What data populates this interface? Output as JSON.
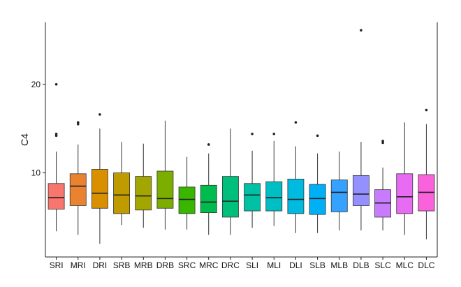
{
  "chart_data": {
    "type": "box",
    "ylabel": "C4",
    "xlabel": "",
    "ylim": [
      0.5,
      27
    ],
    "yticks": [
      10,
      20
    ],
    "categories": [
      "SRI",
      "MRI",
      "DRI",
      "SRB",
      "MRB",
      "DRB",
      "SRC",
      "MRC",
      "DRC",
      "SLI",
      "MLI",
      "DLI",
      "SLB",
      "MLB",
      "DLB",
      "SLC",
      "MLC",
      "DLC"
    ],
    "colors": [
      "#F8766D",
      "#EA8331",
      "#D89000",
      "#C09B00",
      "#A3A500",
      "#7CAE00",
      "#39B600",
      "#00BB4E",
      "#00BF7D",
      "#00C1A3",
      "#00BFC4",
      "#00BAE0",
      "#00B0F6",
      "#35A2FF",
      "#9590FF",
      "#C77CFF",
      "#E76BF3",
      "#FA62DB"
    ],
    "series": [
      {
        "category": "SRI",
        "min": 3.4,
        "q1": 5.9,
        "median": 7.2,
        "q3": 8.8,
        "max": 12.4,
        "outliers": [
          14.2,
          14.4,
          20.0
        ]
      },
      {
        "category": "MRI",
        "min": 3.0,
        "q1": 6.3,
        "median": 8.5,
        "q3": 9.9,
        "max": 13.2,
        "outliers": [
          15.5,
          15.7
        ]
      },
      {
        "category": "DRI",
        "min": 2.0,
        "q1": 6.0,
        "median": 7.7,
        "q3": 10.4,
        "max": 15.0,
        "outliers": [
          16.6
        ]
      },
      {
        "category": "SRB",
        "min": 4.1,
        "q1": 5.4,
        "median": 7.5,
        "q3": 10.0,
        "max": 13.5,
        "outliers": []
      },
      {
        "category": "MRB",
        "min": 3.8,
        "q1": 5.8,
        "median": 7.4,
        "q3": 9.6,
        "max": 13.3,
        "outliers": []
      },
      {
        "category": "DRB",
        "min": 3.6,
        "q1": 6.0,
        "median": 7.1,
        "q3": 10.2,
        "max": 15.9,
        "outliers": []
      },
      {
        "category": "SRC",
        "min": 3.6,
        "q1": 5.4,
        "median": 7.0,
        "q3": 8.4,
        "max": 11.8,
        "outliers": []
      },
      {
        "category": "MRC",
        "min": 3.0,
        "q1": 5.5,
        "median": 6.7,
        "q3": 8.6,
        "max": 12.2,
        "outliers": [
          13.2
        ]
      },
      {
        "category": "DRC",
        "min": 3.0,
        "q1": 5.0,
        "median": 6.8,
        "q3": 9.6,
        "max": 15.0,
        "outliers": []
      },
      {
        "category": "SLI",
        "min": 3.8,
        "q1": 5.7,
        "median": 7.5,
        "q3": 8.8,
        "max": 12.5,
        "outliers": [
          14.4
        ]
      },
      {
        "category": "MLI",
        "min": 4.0,
        "q1": 5.7,
        "median": 7.2,
        "q3": 9.0,
        "max": 13.6,
        "outliers": [
          14.4
        ]
      },
      {
        "category": "DLI",
        "min": 3.2,
        "q1": 5.4,
        "median": 7.0,
        "q3": 9.3,
        "max": 13.0,
        "outliers": [
          15.7
        ]
      },
      {
        "category": "SLB",
        "min": 3.2,
        "q1": 5.3,
        "median": 7.1,
        "q3": 8.7,
        "max": 12.2,
        "outliers": [
          14.2
        ]
      },
      {
        "category": "MLB",
        "min": 3.5,
        "q1": 5.6,
        "median": 7.8,
        "q3": 9.2,
        "max": 12.4,
        "outliers": []
      },
      {
        "category": "DLB",
        "min": 3.5,
        "q1": 6.3,
        "median": 7.6,
        "q3": 9.7,
        "max": 13.5,
        "outliers": [
          26.1
        ]
      },
      {
        "category": "SLC",
        "min": 3.5,
        "q1": 5.0,
        "median": 6.6,
        "q3": 8.1,
        "max": 10.6,
        "outliers": [
          13.4,
          13.6
        ]
      },
      {
        "category": "MLC",
        "min": 3.0,
        "q1": 5.4,
        "median": 7.3,
        "q3": 9.9,
        "max": 15.7,
        "outliers": []
      },
      {
        "category": "DLC",
        "min": 2.5,
        "q1": 5.7,
        "median": 7.8,
        "q3": 9.8,
        "max": 15.5,
        "outliers": [
          17.1
        ]
      }
    ]
  }
}
